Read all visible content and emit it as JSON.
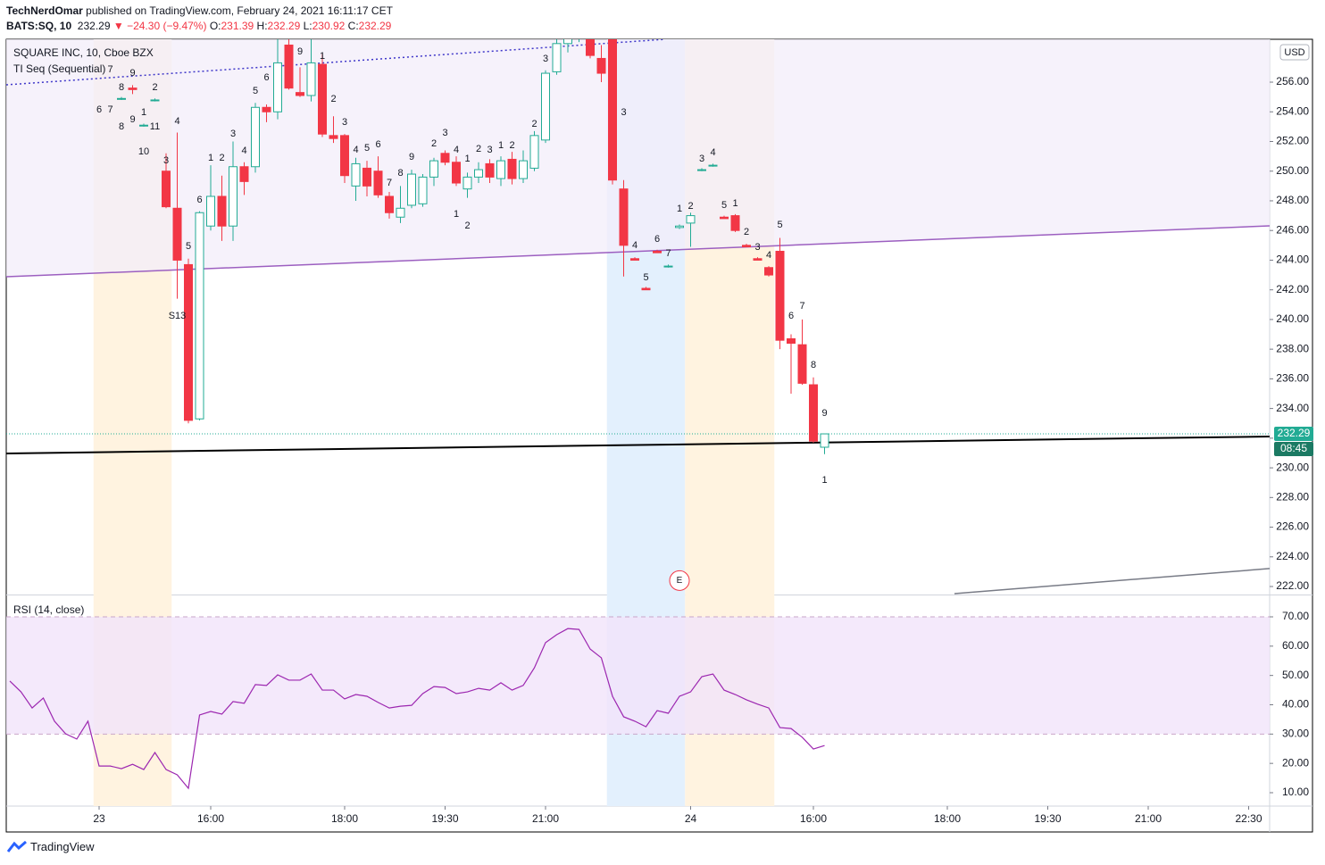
{
  "header": {
    "author": "TechNerdOmar",
    "published": "published on TradingView.com, February 24, 2021 16:11:17 CET",
    "symbol": "BATS:SQ, 10",
    "last": "232.29",
    "arrow": "▼",
    "change": "−24.30 (−9.47%)",
    "ohlc": [
      {
        "key": "O:",
        "value": "231.39"
      },
      {
        "key": "H:",
        "value": "232.29"
      },
      {
        "key": "L:",
        "value": "230.92"
      },
      {
        "key": "C:",
        "value": "232.29"
      }
    ]
  },
  "footer": {
    "brand": "TradingView"
  },
  "chart_data": [
    {
      "type": "candlestick",
      "title": "SQUARE INC, 10, Cboe BZX",
      "indicator": "TI Seq (Sequential)",
      "currency": "USD",
      "last_time": "08:45",
      "up_color": "#22ab94",
      "down_color": "#f23645",
      "last_line_color": "#22ab94",
      "xlim": [
        -18.32,
        94.88
      ],
      "ylim": [
        221.46,
        258.89
      ],
      "yticks": [
        {
          "value": 222,
          "label": "222.00"
        },
        {
          "value": 224,
          "label": "224.00"
        },
        {
          "value": 226,
          "label": "226.00"
        },
        {
          "value": 228,
          "label": "228.00"
        },
        {
          "value": 230,
          "label": "230.00"
        },
        {
          "value": 232,
          "label": "232.00"
        },
        {
          "value": 234,
          "label": "234.00"
        },
        {
          "value": 236,
          "label": "236.00"
        },
        {
          "value": 238,
          "label": "238.00"
        },
        {
          "value": 240,
          "label": "240.00"
        },
        {
          "value": 242,
          "label": "242.00"
        },
        {
          "value": 244,
          "label": "244.00"
        },
        {
          "value": 246,
          "label": "246.00"
        },
        {
          "value": 248,
          "label": "248.00"
        },
        {
          "value": 250,
          "label": "250.00"
        },
        {
          "value": 252,
          "label": "252.00"
        },
        {
          "value": 254,
          "label": "254.00"
        },
        {
          "value": 256,
          "label": "256.00"
        }
      ],
      "grid": false,
      "x": [
        -8,
        -7,
        -6,
        -5,
        -4,
        -3,
        -2,
        -1,
        0,
        1,
        2,
        3,
        4,
        5,
        6,
        7,
        8,
        9,
        10,
        11,
        12,
        13,
        14,
        15,
        16,
        17,
        18,
        19,
        20,
        21,
        22,
        23,
        24,
        25,
        26,
        27,
        28,
        29,
        30,
        31,
        32,
        33,
        34,
        35,
        36,
        37,
        38,
        39,
        40,
        41,
        42,
        43,
        44,
        45,
        46,
        47,
        48,
        49,
        50,
        51,
        52,
        53,
        54,
        55
      ],
      "open": [
        254.9,
        255.6,
        253.1,
        254.8,
        250.0,
        247.5,
        243.7,
        233.3,
        246.3,
        248.3,
        246.3,
        250.3,
        250.3,
        254.3,
        254.0,
        258.5,
        255.3,
        255.1,
        257.2,
        252.4,
        252.4,
        249.0,
        250.2,
        250.0,
        248.3,
        246.9,
        247.7,
        247.8,
        249.6,
        251.2,
        250.6,
        248.8,
        249.6,
        250.5,
        249.5,
        250.8,
        249.5,
        250.2,
        252.1,
        256.7,
        258.6,
        259.0,
        258.9,
        257.6,
        258.9,
        248.8,
        244.1,
        242.1,
        244.6,
        243.6,
        246.2,
        246.5,
        250.1,
        250.4,
        246.9,
        247.0,
        245.0,
        244.1,
        243.5,
        244.6,
        238.7,
        238.3,
        235.6,
        231.39
      ],
      "high": [
        255.0,
        255.8,
        253.2,
        254.9,
        251.2,
        252.6,
        244.1,
        247.3,
        250.4,
        249.7,
        252.0,
        250.6,
        254.6,
        254.5,
        258.9,
        258.9,
        257.0,
        258.9,
        257.9,
        253.7,
        252.5,
        250.9,
        250.7,
        251.0,
        248.6,
        249.0,
        250.1,
        249.8,
        250.9,
        251.4,
        251.0,
        249.9,
        250.6,
        250.8,
        251.0,
        251.3,
        251.4,
        252.7,
        256.8,
        258.9,
        259.5,
        259.8,
        259.3,
        258.5,
        259.2,
        249.4,
        244.2,
        242.2,
        244.7,
        243.7,
        246.4,
        247.2,
        250.2,
        250.5,
        247.0,
        247.1,
        245.1,
        244.2,
        243.6,
        245.5,
        239.0,
        240.0,
        236.1,
        232.29
      ],
      "low": [
        254.8,
        255.2,
        253.0,
        254.7,
        247.5,
        241.4,
        233.0,
        233.2,
        246.0,
        245.3,
        245.3,
        248.4,
        249.9,
        253.3,
        253.5,
        255.5,
        255.0,
        254.7,
        252.3,
        251.9,
        249.2,
        248.0,
        248.3,
        248.2,
        246.8,
        246.5,
        247.5,
        247.6,
        249.0,
        250.4,
        249.0,
        248.2,
        249.2,
        249.2,
        249.0,
        249.1,
        249.2,
        250.0,
        251.9,
        256.5,
        258.0,
        258.7,
        257.6,
        256.0,
        249.1,
        242.9,
        244.0,
        242.0,
        244.5,
        243.5,
        246.1,
        244.9,
        250.0,
        250.3,
        246.8,
        245.9,
        244.9,
        244.0,
        242.9,
        238.0,
        235.0,
        235.6,
        231.7,
        230.92
      ],
      "close": [
        254.9,
        255.5,
        253.1,
        254.8,
        247.6,
        244.0,
        233.2,
        247.2,
        248.3,
        246.3,
        250.3,
        249.3,
        254.3,
        254.0,
        257.3,
        255.6,
        255.1,
        257.3,
        252.5,
        252.2,
        249.7,
        250.5,
        249.0,
        248.4,
        247.2,
        247.5,
        249.8,
        249.6,
        250.7,
        250.6,
        249.2,
        249.6,
        250.1,
        249.6,
        250.7,
        249.5,
        250.7,
        252.4,
        256.6,
        258.6,
        259.2,
        259.5,
        257.8,
        256.6,
        249.4,
        245.0,
        244.0,
        242.0,
        244.5,
        243.6,
        246.3,
        247.0,
        250.1,
        250.4,
        246.8,
        246.0,
        244.9,
        244.0,
        243.0,
        238.6,
        238.4,
        235.7,
        231.8,
        232.29
      ],
      "sessions": [
        {
          "from": -10.5,
          "to": -3.5,
          "color": "#fff3e0"
        },
        {
          "from": 35.5,
          "to": 42.5,
          "color": "#e3f0fd"
        },
        {
          "from": 42.5,
          "to": 50.5,
          "color": "#fff3e0"
        }
      ],
      "trendlines": [
        {
          "points": [
            [
              -18.32,
              242.88
            ],
            [
              94.88,
              246.31
            ]
          ],
          "color": "#9c5fc0",
          "dash": "none",
          "fill": "#f3eef9"
        },
        {
          "points": [
            [
              -18.32,
              255.82
            ],
            [
              40.72,
              258.89
            ]
          ],
          "color": "#3f37c9",
          "dash": "2 3"
        },
        {
          "points": [
            [
              -18.32,
              230.97
            ],
            [
              94.88,
              232.11
            ]
          ],
          "color": "#000000",
          "dash": "none"
        },
        {
          "points": [
            [
              66.64,
              221.52
            ],
            [
              94.88,
              223.21
            ]
          ],
          "color": "#787b86",
          "dash": "none"
        }
      ],
      "events": [
        {
          "x": 42,
          "y": 222.4,
          "label": "E"
        }
      ],
      "seq_labels": [
        {
          "x": -9,
          "y": 256.84,
          "text": "7",
          "color": "#f06262"
        },
        {
          "x": -7,
          "y": 256.6,
          "text": "9",
          "color": "#f06262"
        },
        {
          "x": -8,
          "y": 255.64,
          "text": "8",
          "color": "#f06262"
        },
        {
          "x": -5,
          "y": 255.64,
          "text": "2",
          "color": "#f06262"
        },
        {
          "x": -10,
          "y": 254.13,
          "text": "6",
          "color": "#f06262"
        },
        {
          "x": -9,
          "y": 254.13,
          "text": "7",
          "color": "#f06262"
        },
        {
          "x": -6,
          "y": 253.95,
          "text": "1",
          "color": "#f06262"
        },
        {
          "x": -7,
          "y": 253.47,
          "text": "9",
          "color": "#f06262"
        },
        {
          "x": -8,
          "y": 252.99,
          "text": "8",
          "color": "#f06262"
        },
        {
          "x": -5,
          "y": 252.99,
          "text": "11",
          "color": "#f06262"
        },
        {
          "x": -6,
          "y": 251.31,
          "text": "10",
          "color": "#f06262"
        },
        {
          "x": -4,
          "y": 250.71,
          "text": "3",
          "color": "#f06262"
        },
        {
          "x": -3,
          "y": 253.35,
          "text": "4",
          "color": "#f06262"
        },
        {
          "x": -2,
          "y": 244.93,
          "text": "5",
          "color": "#f06262"
        },
        {
          "x": -1,
          "y": 248.06,
          "text": "6",
          "color": "#f06262"
        },
        {
          "x": 10,
          "y": 257.74,
          "text": "1",
          "color": "#f06262"
        },
        {
          "x": 11,
          "y": 254.86,
          "text": "2",
          "color": "#f06262"
        },
        {
          "x": 12,
          "y": 253.29,
          "text": "3",
          "color": "#f06262"
        },
        {
          "x": 13,
          "y": 251.43,
          "text": "4",
          "color": "#f06262"
        },
        {
          "x": 14,
          "y": 251.55,
          "text": "5",
          "color": "#f06262"
        },
        {
          "x": 15,
          "y": 251.79,
          "text": "6",
          "color": "#f06262"
        },
        {
          "x": 16,
          "y": 249.2,
          "text": "7",
          "color": "#f06262"
        },
        {
          "x": 17,
          "y": 249.86,
          "text": "8",
          "color": "#f06262"
        },
        {
          "x": 18,
          "y": 250.95,
          "text": "9",
          "color": "#f06262"
        },
        {
          "x": 23,
          "y": 250.83,
          "text": "1",
          "color": "#f06262"
        },
        {
          "x": 24,
          "y": 251.49,
          "text": "2",
          "color": "#f06262"
        },
        {
          "x": 25,
          "y": 251.43,
          "text": "3",
          "color": "#f06262"
        },
        {
          "x": 22,
          "y": 247.1,
          "text": "1",
          "color": "#f06262"
        },
        {
          "x": 23,
          "y": 246.31,
          "text": "2",
          "color": "#f06262"
        },
        {
          "x": 37,
          "y": 253.95,
          "text": "3",
          "color": "#f06262"
        },
        {
          "x": 38,
          "y": 244.99,
          "text": "4",
          "color": "#f06262"
        },
        {
          "x": 39,
          "y": 242.82,
          "text": "5",
          "color": "#f06262"
        },
        {
          "x": 40,
          "y": 245.41,
          "text": "6",
          "color": "#f06262"
        },
        {
          "x": 41,
          "y": 244.45,
          "text": "7",
          "color": "#f06262"
        },
        {
          "x": 47,
          "y": 247.82,
          "text": "1",
          "color": "#f06262"
        },
        {
          "x": 48,
          "y": 245.89,
          "text": "2",
          "color": "#f06262"
        },
        {
          "x": 49,
          "y": 244.87,
          "text": "3",
          "color": "#f06262"
        },
        {
          "x": 50,
          "y": 244.33,
          "text": "4",
          "color": "#f06262"
        },
        {
          "x": 51,
          "y": 246.37,
          "text": "5",
          "color": "#f06262"
        },
        {
          "x": 52,
          "y": 240.24,
          "text": "6",
          "color": "#f06262"
        },
        {
          "x": 53,
          "y": 240.9,
          "text": "7",
          "color": "#f06262"
        },
        {
          "x": 54,
          "y": 236.93,
          "text": "8",
          "color": "#f06262"
        },
        {
          "x": 55,
          "y": 233.68,
          "text": "9",
          "color": "#f06262"
        },
        {
          "x": 55,
          "y": 229.16,
          "text": "1",
          "color": "#f06262"
        },
        {
          "x": 0,
          "y": 250.89,
          "text": "1",
          "color": "#22b14c"
        },
        {
          "x": 1,
          "y": 250.89,
          "text": "2",
          "color": "#22b14c"
        },
        {
          "x": 2,
          "y": 252.51,
          "text": "3",
          "color": "#22b14c"
        },
        {
          "x": 3,
          "y": 251.37,
          "text": "4",
          "color": "#22b14c"
        },
        {
          "x": 4,
          "y": 255.4,
          "text": "5",
          "color": "#22b14c"
        },
        {
          "x": 5,
          "y": 256.3,
          "text": "6",
          "color": "#22b14c"
        },
        {
          "x": 8,
          "y": 258.05,
          "text": "9",
          "color": "#22b14c"
        },
        {
          "x": 20,
          "y": 251.85,
          "text": "2",
          "color": "#22b14c"
        },
        {
          "x": 21,
          "y": 252.57,
          "text": "3",
          "color": "#22b14c"
        },
        {
          "x": 22,
          "y": 251.43,
          "text": "4",
          "color": "#22b14c"
        },
        {
          "x": 26,
          "y": 251.73,
          "text": "1",
          "color": "#22b14c"
        },
        {
          "x": 27,
          "y": 251.73,
          "text": "2",
          "color": "#22b14c"
        },
        {
          "x": 29,
          "y": 253.17,
          "text": "2",
          "color": "#22b14c"
        },
        {
          "x": 30,
          "y": 257.56,
          "text": "3",
          "color": "#22b14c"
        },
        {
          "x": 42,
          "y": 247.46,
          "text": "1",
          "color": "#22b14c"
        },
        {
          "x": 43,
          "y": 247.64,
          "text": "2",
          "color": "#22b14c"
        },
        {
          "x": 44,
          "y": 250.83,
          "text": "3",
          "color": "#22b14c"
        },
        {
          "x": 45,
          "y": 251.25,
          "text": "4",
          "color": "#22b14c"
        },
        {
          "x": 46,
          "y": 247.7,
          "text": "5",
          "color": "#22b14c"
        },
        {
          "x": -3,
          "y": 240.24,
          "text": "S13",
          "color": "#f0a020"
        }
      ]
    },
    {
      "type": "line",
      "xlim": [
        -18.32,
        94.88
      ],
      "ylim": [
        5.43,
        77.31
      ],
      "yticks": [
        {
          "value": 10,
          "label": "10.00"
        },
        {
          "value": 20,
          "label": "20.00"
        },
        {
          "value": 30,
          "label": "30.00"
        },
        {
          "value": 40,
          "label": "40.00"
        },
        {
          "value": 50,
          "label": "50.00"
        },
        {
          "value": 60,
          "label": "60.00"
        },
        {
          "value": 70,
          "label": "70.00"
        }
      ],
      "xticks": [
        {
          "value": -10,
          "label": "23"
        },
        {
          "value": 0,
          "label": "16:00"
        },
        {
          "value": 12,
          "label": "18:00"
        },
        {
          "value": 21,
          "label": "19:30"
        },
        {
          "value": 30,
          "label": "21:00"
        },
        {
          "value": 43,
          "label": "24"
        },
        {
          "value": 54,
          "label": "16:00"
        },
        {
          "value": 66,
          "label": "18:00"
        },
        {
          "value": 75,
          "label": "19:30"
        },
        {
          "value": 84,
          "label": "21:00"
        },
        {
          "value": 93,
          "label": "22:30"
        }
      ],
      "band": {
        "low": 30,
        "high": 70,
        "color": "#f1e3fa",
        "line_color": "#c9a6c9"
      },
      "x": [
        -18,
        -17,
        -16,
        -15,
        -14,
        -13,
        -12,
        -11,
        -10,
        -9,
        -8,
        -7,
        -6,
        -5,
        -4,
        -3,
        -2,
        -1,
        0,
        1,
        2,
        3,
        4,
        5,
        6,
        7,
        8,
        9,
        10,
        11,
        12,
        13,
        14,
        15,
        16,
        17,
        18,
        19,
        20,
        21,
        22,
        23,
        24,
        25,
        26,
        27,
        28,
        29,
        30,
        31,
        32,
        33,
        34,
        35,
        36,
        37,
        38,
        39,
        40,
        41,
        42,
        43,
        44,
        45,
        46,
        47,
        48,
        49,
        50,
        51,
        52,
        53,
        54,
        55
      ],
      "series": [
        {
          "name": "RSI (14, close)",
          "color": "#9c27b0",
          "values": [
            48.1,
            44.4,
            38.9,
            42.3,
            34.4,
            30.1,
            28.3,
            34.4,
            19.1,
            19.1,
            18.2,
            19.7,
            17.9,
            23.7,
            17.9,
            16.1,
            11.5,
            36.5,
            37.7,
            36.8,
            41.1,
            40.5,
            46.9,
            46.6,
            50.2,
            48.4,
            48.4,
            50.5,
            45.0,
            45.0,
            42.0,
            43.5,
            42.9,
            40.8,
            38.9,
            39.5,
            39.8,
            43.8,
            46.2,
            45.9,
            43.8,
            44.4,
            45.6,
            45.0,
            47.5,
            45.0,
            46.6,
            52.6,
            61.2,
            63.9,
            66.0,
            65.7,
            59.0,
            56.0,
            42.9,
            35.9,
            34.4,
            32.5,
            38.0,
            37.1,
            42.9,
            44.4,
            49.6,
            50.5,
            45.0,
            43.5,
            41.7,
            40.2,
            38.9,
            32.2,
            31.9,
            28.9,
            24.9,
            26.1
          ]
        }
      ]
    }
  ]
}
